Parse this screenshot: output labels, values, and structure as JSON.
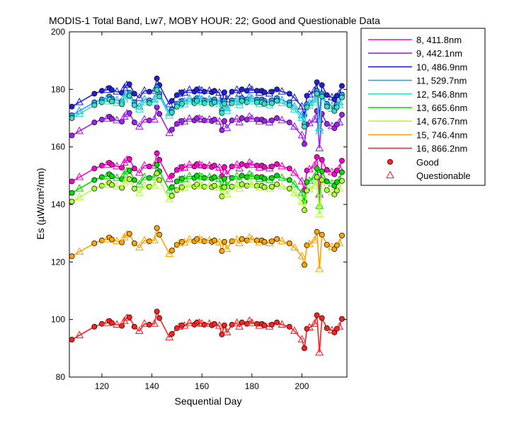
{
  "chart_data": {
    "type": "line",
    "title": "MODIS-1 Total Band,  Lw7, MOBY HOUR: 22;  Good and Questionable Data",
    "xlabel": "Sequential Day",
    "ylabel": "Es (µW/cm²/nm)",
    "xlim": [
      107,
      218
    ],
    "ylim": [
      80,
      200
    ],
    "xticks": [
      120,
      140,
      160,
      180,
      200
    ],
    "yticks": [
      80,
      100,
      120,
      140,
      160,
      180,
      200
    ],
    "grid": false,
    "legend_position": "outside-right",
    "markers": [
      {
        "name": "Good",
        "shape": "circle"
      },
      {
        "name": "Questionable",
        "shape": "triangle"
      }
    ],
    "x": [
      108,
      111,
      117,
      120,
      122,
      123,
      124,
      126,
      128,
      129,
      130,
      131,
      133,
      135,
      137,
      139,
      141,
      142,
      143,
      147,
      148,
      150,
      151,
      152,
      153,
      155,
      157,
      158,
      159,
      160,
      161,
      163,
      164,
      165,
      167,
      168,
      169,
      170,
      172,
      174,
      175,
      176,
      178,
      179,
      180,
      182,
      183,
      184,
      185,
      187,
      188,
      190,
      192,
      195,
      197,
      200,
      201,
      202,
      203,
      205,
      206,
      207,
      208,
      210,
      212,
      213,
      214,
      215,
      216
    ],
    "series": [
      {
        "name": "8, 411.8nm",
        "color": "#ff00cc",
        "base": 148
      },
      {
        "name": "9, 442.1nm",
        "color": "#a020f0",
        "base": 164
      },
      {
        "name": "10, 486.9nm",
        "color": "#2020d8",
        "base": 174
      },
      {
        "name": "11, 529.7nm",
        "color": "#20a0ff",
        "base": 171
      },
      {
        "name": "12, 546.8nm",
        "color": "#30e0c8",
        "base": 170
      },
      {
        "name": "13, 665.6nm",
        "color": "#00e000",
        "base": 144
      },
      {
        "name": "14, 676.7nm",
        "color": "#b0ff30",
        "base": 141
      },
      {
        "name": "15, 746.4nm",
        "color": "#ffa500",
        "base": 122
      },
      {
        "name": "16, 866.2nm",
        "color": "#ff2020",
        "base": 93
      }
    ],
    "shape_profile": [
      0,
      1.5,
      4.5,
      5.5,
      5.8,
      6.5,
      5.8,
      5.2,
      4.8,
      6.5,
      7.5,
      7.8,
      4.5,
      3,
      5.5,
      5.2,
      5.5,
      9.8,
      7.5,
      0.8,
      2,
      4,
      4.5,
      5,
      4.8,
      5.8,
      5.2,
      6,
      5.8,
      5.5,
      5.2,
      5.5,
      5,
      5.5,
      4.8,
      1.8,
      5,
      2.5,
      5.2,
      5.8,
      4.5,
      6,
      5.5,
      6.5,
      5.8,
      5.5,
      4.8,
      5.5,
      5,
      4.5,
      5.2,
      6,
      5.2,
      4.5,
      3,
      0,
      -3,
      3.8,
      4.2,
      5.5,
      8.5,
      -4.5,
      7.5,
      4,
      3.2,
      2.5,
      3.8,
      4.5,
      7.2
    ]
  }
}
